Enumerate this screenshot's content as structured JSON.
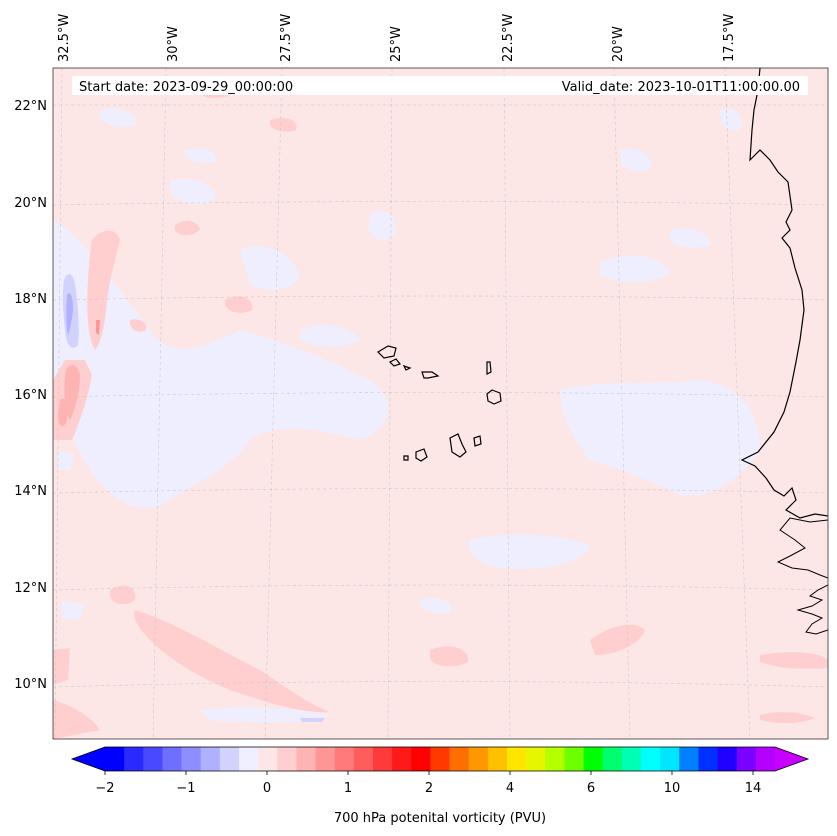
{
  "map": {
    "start_date": "Start date: 2023-09-29_00:00:00",
    "valid_date": "Valid_date: 2023-10-01T11:00:00.00",
    "background_color": "#fde6e6",
    "coastline_color": "#000000",
    "gridline_color": "#c8c8c8",
    "lon_labels": [
      "32.5°W",
      "30°W",
      "27.5°W",
      "25°W",
      "22.5°W",
      "20°W",
      "17.5°W"
    ],
    "lat_labels": [
      "22°N",
      "20°N",
      "18°N",
      "16°N",
      "14°N",
      "12°N",
      "10°N"
    ],
    "islands": [
      "Santo Antão",
      "São Vicente",
      "São Nicolau",
      "Sal",
      "Boa Vista",
      "Maio",
      "Santiago",
      "Fogo",
      "Brava"
    ]
  },
  "colorbar": {
    "label": "700 hPa potenital vorticity (PVU)",
    "tick_labels": [
      "−2",
      "−1",
      "0",
      "1",
      "2",
      "4",
      "6",
      "10",
      "14"
    ],
    "colors": [
      "#0000ff",
      "#2a2aff",
      "#4949ff",
      "#6e6eff",
      "#8e8eff",
      "#b0b0ff",
      "#d2d2ff",
      "#efefff",
      "#ffe6e6",
      "#ffcfcf",
      "#ffb4b4",
      "#ff9696",
      "#ff7a7a",
      "#ff5c5c",
      "#ff3a3a",
      "#ff1a1a",
      "#ff0000",
      "#ff3a00",
      "#ff6e00",
      "#ff9800",
      "#ffc000",
      "#ffe600",
      "#e6f500",
      "#b4ff00",
      "#6eff00",
      "#00ff00",
      "#00ff6e",
      "#00ffb4",
      "#00ffff",
      "#00e6ff",
      "#0080ff",
      "#0030ff",
      "#2000ff",
      "#7a00ff",
      "#b400ff"
    ],
    "extend_low_color": "#0000ff",
    "extend_high_color": "#c800ff"
  }
}
